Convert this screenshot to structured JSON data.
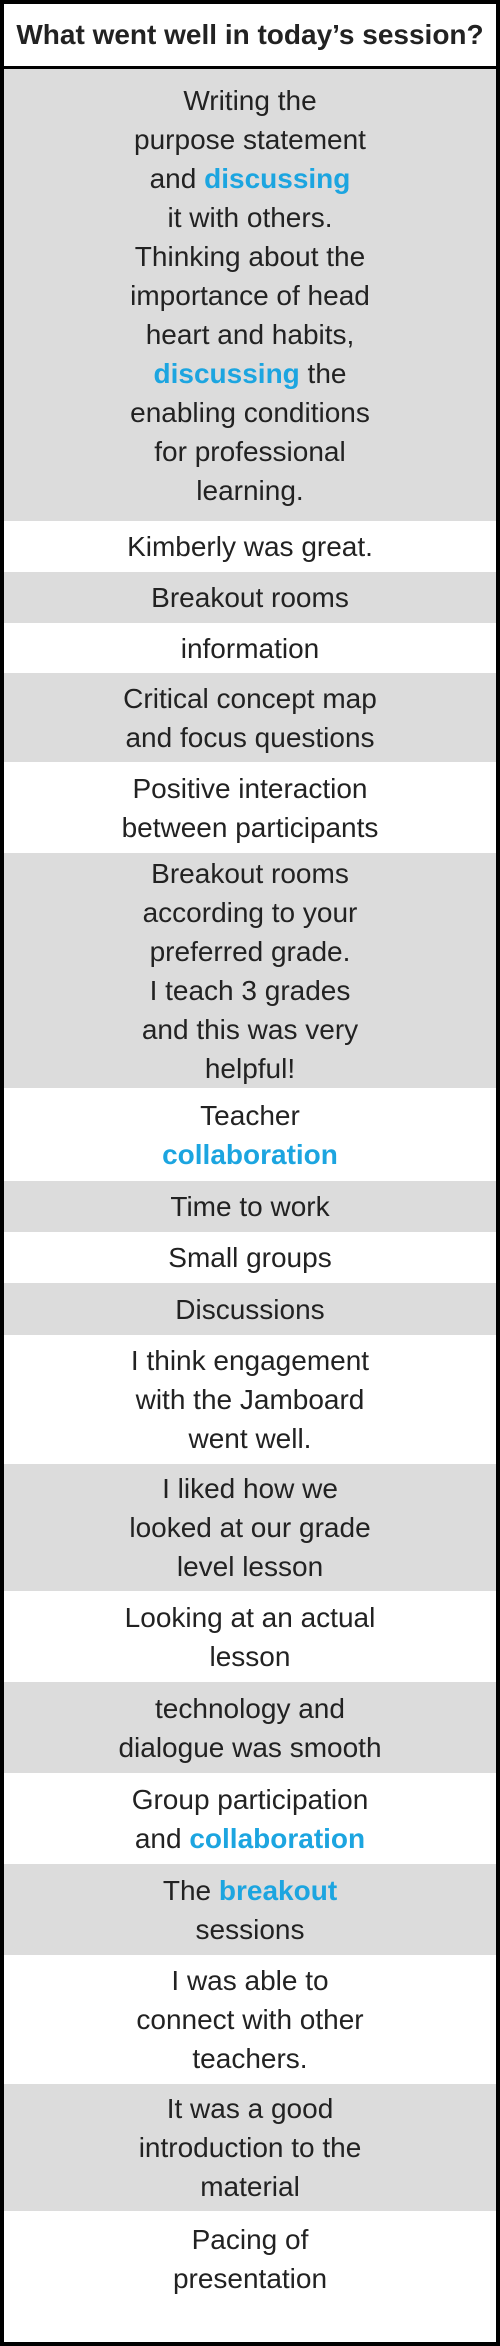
{
  "header": {
    "title": "What went well in today’s session?"
  },
  "colors": {
    "highlight": "#1ca5e0",
    "shaded_row": "#dcdcdc",
    "text": "#222222"
  },
  "rows": [
    {
      "shaded": true,
      "lines": [
        [
          {
            "t": "Writing the"
          }
        ],
        [
          {
            "t": "purpose statement"
          }
        ],
        [
          {
            "t": "and "
          },
          {
            "t": "discussing",
            "hl": true
          }
        ],
        [
          {
            "t": "it with others."
          }
        ],
        [
          {
            "t": "Thinking about the"
          }
        ],
        [
          {
            "t": "importance of head"
          }
        ],
        [
          {
            "t": "heart and habits,"
          }
        ],
        [
          {
            "t": "discussing",
            "hl": true
          },
          {
            "t": " the"
          }
        ],
        [
          {
            "t": "enabling conditions"
          }
        ],
        [
          {
            "t": "for professional"
          }
        ],
        [
          {
            "t": "learning."
          }
        ]
      ]
    },
    {
      "shaded": false,
      "lines": [
        [
          {
            "t": "Kimberly was great."
          }
        ]
      ]
    },
    {
      "shaded": true,
      "lines": [
        [
          {
            "t": "Breakout rooms"
          }
        ]
      ]
    },
    {
      "shaded": false,
      "lines": [
        [
          {
            "t": "information"
          }
        ]
      ]
    },
    {
      "shaded": true,
      "lines": [
        [
          {
            "t": "Critical concept map"
          }
        ],
        [
          {
            "t": "and focus questions"
          }
        ]
      ]
    },
    {
      "shaded": false,
      "lines": [
        [
          {
            "t": "Positive interaction"
          }
        ],
        [
          {
            "t": "between participants"
          }
        ]
      ]
    },
    {
      "shaded": true,
      "lines": [
        [
          {
            "t": "Breakout rooms"
          }
        ],
        [
          {
            "t": "according to your"
          }
        ],
        [
          {
            "t": "preferred grade."
          }
        ],
        [
          {
            "t": "I teach 3 grades"
          }
        ],
        [
          {
            "t": "and this was very"
          }
        ],
        [
          {
            "t": "helpful!"
          }
        ]
      ]
    },
    {
      "shaded": false,
      "lines": [
        [
          {
            "t": "Teacher"
          }
        ],
        [
          {
            "t": "collaboration",
            "hl": true
          }
        ]
      ]
    },
    {
      "shaded": true,
      "lines": [
        [
          {
            "t": "Time to work"
          }
        ]
      ]
    },
    {
      "shaded": false,
      "lines": [
        [
          {
            "t": "Small groups"
          }
        ]
      ]
    },
    {
      "shaded": true,
      "lines": [
        [
          {
            "t": "Discussions"
          }
        ]
      ]
    },
    {
      "shaded": false,
      "lines": [
        [
          {
            "t": "I think engagement"
          }
        ],
        [
          {
            "t": "with the Jamboard"
          }
        ],
        [
          {
            "t": "went well."
          }
        ]
      ]
    },
    {
      "shaded": true,
      "lines": [
        [
          {
            "t": "I liked how we"
          }
        ],
        [
          {
            "t": "looked at our grade"
          }
        ],
        [
          {
            "t": "level lesson"
          }
        ]
      ]
    },
    {
      "shaded": false,
      "lines": [
        [
          {
            "t": "Looking at an actual"
          }
        ],
        [
          {
            "t": "lesson"
          }
        ]
      ]
    },
    {
      "shaded": true,
      "lines": [
        [
          {
            "t": "technology and"
          }
        ],
        [
          {
            "t": "dialogue was smooth"
          }
        ]
      ]
    },
    {
      "shaded": false,
      "lines": [
        [
          {
            "t": "Group participation"
          }
        ],
        [
          {
            "t": "and "
          },
          {
            "t": "collaboration",
            "hl": true
          }
        ]
      ]
    },
    {
      "shaded": true,
      "lines": [
        [
          {
            "t": "The "
          },
          {
            "t": "breakout",
            "hl": true
          }
        ],
        [
          {
            "t": "sessions"
          }
        ]
      ]
    },
    {
      "shaded": false,
      "lines": [
        [
          {
            "t": "I was able to"
          }
        ],
        [
          {
            "t": "connect with other"
          }
        ],
        [
          {
            "t": "teachers."
          }
        ]
      ]
    },
    {
      "shaded": true,
      "lines": [
        [
          {
            "t": "It was a good"
          }
        ],
        [
          {
            "t": "introduction to the"
          }
        ],
        [
          {
            "t": "material"
          }
        ]
      ]
    },
    {
      "shaded": false,
      "lines": [
        [
          {
            "t": "Pacing of"
          }
        ],
        [
          {
            "t": "presentation"
          }
        ]
      ]
    }
  ]
}
